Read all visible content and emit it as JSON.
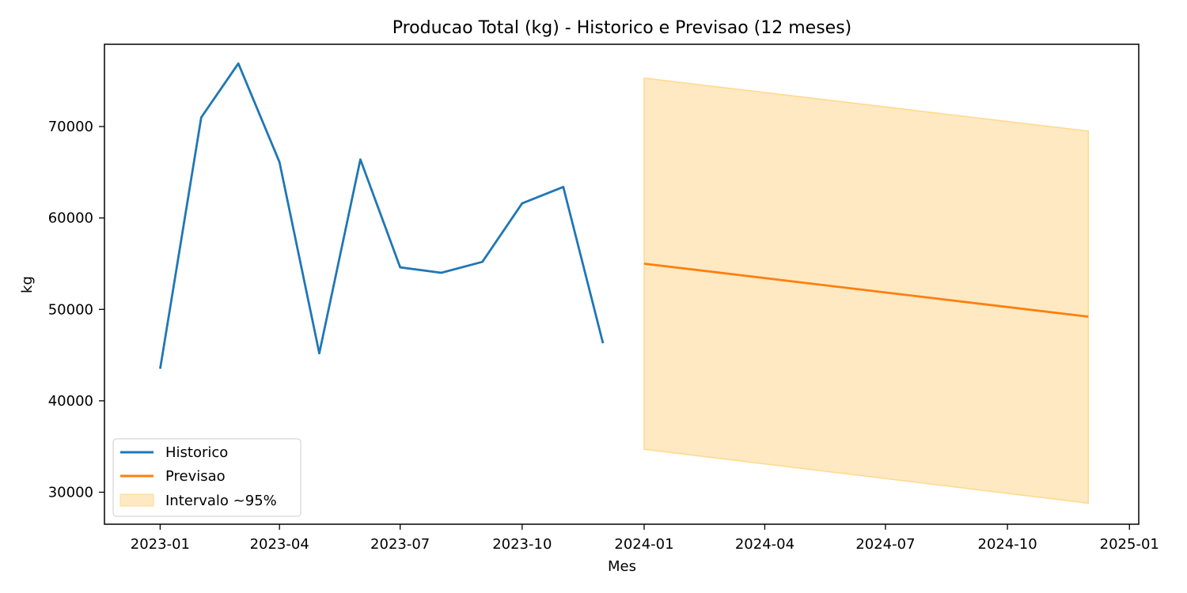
{
  "chart_data": {
    "type": "line",
    "title": "Producao Total (kg) - Historico e Previsao (12 meses)",
    "xlabel": "Mes",
    "ylabel": "kg",
    "x_axis": {
      "kind": "date",
      "range": [
        "2022-11-20",
        "2025-01-08"
      ],
      "ticks": [
        "2023-01",
        "2023-04",
        "2023-07",
        "2023-10",
        "2024-01",
        "2024-04",
        "2024-07",
        "2024-10",
        "2025-01"
      ]
    },
    "y_axis": {
      "range": [
        26500,
        79000
      ],
      "ticks": [
        30000,
        40000,
        50000,
        60000,
        70000
      ]
    },
    "grid": false,
    "legend_position": "lower-left",
    "series": [
      {
        "name": "Historico",
        "kind": "line",
        "color": "#1f77b4",
        "x": [
          "2023-01-01",
          "2023-02-01",
          "2023-03-01",
          "2023-04-01",
          "2023-05-01",
          "2023-06-01",
          "2023-07-01",
          "2023-08-01",
          "2023-09-01",
          "2023-10-01",
          "2023-11-01",
          "2023-12-01"
        ],
        "y": [
          43500,
          71000,
          76900,
          66100,
          45200,
          66400,
          54600,
          54000,
          55200,
          61600,
          63400,
          46300
        ]
      },
      {
        "name": "Previsao",
        "kind": "line",
        "color": "#ff7f0e",
        "x": [
          "2024-01-01",
          "2024-12-01"
        ],
        "y": [
          55000,
          49200
        ]
      },
      {
        "name": "Intervalo ~95%",
        "kind": "band",
        "color": "#ffe9c2",
        "edge_color": "#ffd98c",
        "x": [
          "2024-01-01",
          "2024-12-01"
        ],
        "lower": [
          34700,
          28800
        ],
        "upper": [
          75300,
          69500
        ]
      }
    ]
  }
}
